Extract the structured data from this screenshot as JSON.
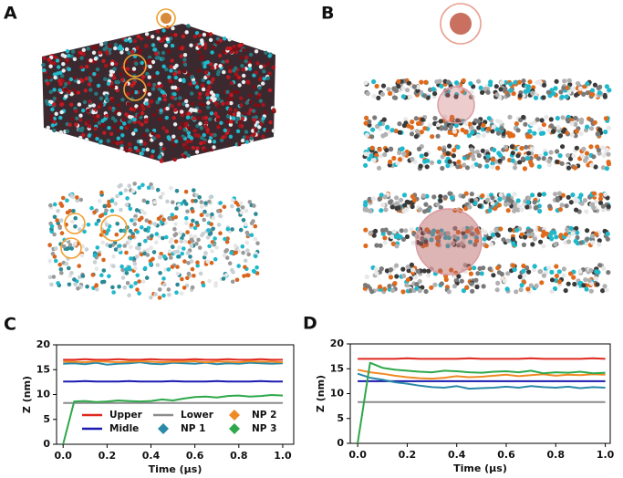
{
  "image_panels": [
    "A",
    "B"
  ],
  "chart_data": [
    {
      "type": "line",
      "panel_label": "C",
      "xlabel": "Time (μs)",
      "ylabel": "Z (nm)",
      "x": [
        0,
        0.05,
        0.1,
        0.15,
        0.2,
        0.25,
        0.3,
        0.35,
        0.4,
        0.45,
        0.5,
        0.55,
        0.6,
        0.65,
        0.7,
        0.75,
        0.8,
        0.85,
        0.9,
        0.95,
        1.0
      ],
      "xlim": [
        -0.03,
        1.05
      ],
      "ylim": [
        0,
        20
      ],
      "xticks": [
        {
          "value": 0,
          "label": "0.0"
        },
        0.2,
        0.4,
        0.6,
        0.8,
        {
          "value": 1,
          "label": "1.0"
        }
      ],
      "yticks": [
        0,
        5,
        10,
        15,
        20
      ],
      "legend": true,
      "series": [
        {
          "name": "Upper",
          "color": "#e0281e",
          "marker": "line",
          "values": [
            17,
            17,
            17.1,
            17,
            17,
            17.1,
            17,
            17,
            17.1,
            17,
            17,
            17,
            17.1,
            17,
            17,
            17.1,
            17,
            17,
            17.1,
            17,
            17
          ]
        },
        {
          "name": "Midle",
          "color": "#1a1ab0",
          "marker": "line",
          "values": [
            12.6,
            12.6,
            12.7,
            12.6,
            12.6,
            12.6,
            12.7,
            12.6,
            12.6,
            12.6,
            12.7,
            12.6,
            12.6,
            12.6,
            12.7,
            12.6,
            12.6,
            12.6,
            12.7,
            12.6,
            12.6
          ]
        },
        {
          "name": "Lower",
          "color": "#8c8c8c",
          "marker": "line",
          "values": [
            8.3,
            8.3,
            8.3,
            8.3,
            8.3,
            8.3,
            8.3,
            8.3,
            8.3,
            8.3,
            8.3,
            8.3,
            8.3,
            8.3,
            8.3,
            8.3,
            8.3,
            8.3,
            8.3,
            8.3,
            8.3
          ]
        },
        {
          "name": "NP 1",
          "color": "#2a8aa8",
          "marker": "diamond",
          "values": [
            16.2,
            16.3,
            16.1,
            16.4,
            16,
            16.2,
            16.3,
            16.5,
            16.2,
            16.1,
            16.4,
            16.3,
            16.2,
            16.4,
            16.1,
            16.3,
            16.2,
            16.4,
            16.3,
            16.2,
            16.3
          ]
        },
        {
          "name": "NP 2",
          "color": "#f08a24",
          "marker": "diamond",
          "values": [
            16.6,
            16.6,
            16.5,
            16.7,
            16.6,
            16.5,
            16.6,
            16.7,
            16.6,
            16.5,
            16.6,
            16.6,
            16.7,
            16.5,
            16.6,
            16.6,
            16.5,
            16.7,
            16.6,
            16.6,
            16.5
          ]
        },
        {
          "name": "NP 3",
          "color": "#2ea84a",
          "marker": "diamond",
          "values": [
            0,
            8.6,
            8.7,
            8.5,
            8.6,
            8.8,
            8.7,
            8.6,
            8.7,
            9,
            8.8,
            9.2,
            9.5,
            9.6,
            9.4,
            9.7,
            9.8,
            9.6,
            9.7,
            9.9,
            9.8
          ]
        }
      ]
    },
    {
      "type": "line",
      "panel_label": "D",
      "xlabel": "Time (μs)",
      "ylabel": "Z (nm)",
      "x": [
        0,
        0.05,
        0.1,
        0.15,
        0.2,
        0.25,
        0.3,
        0.35,
        0.4,
        0.45,
        0.5,
        0.55,
        0.6,
        0.65,
        0.7,
        0.75,
        0.8,
        0.85,
        0.9,
        0.95,
        1.0
      ],
      "xlim": [
        -0.03,
        1.02
      ],
      "ylim": [
        0,
        20
      ],
      "xticks": [
        {
          "value": 0,
          "label": "0.0"
        },
        0.2,
        0.4,
        0.6,
        0.8,
        {
          "value": 1,
          "label": "1.0"
        }
      ],
      "yticks": [
        0,
        5,
        10,
        15,
        20
      ],
      "legend": false,
      "series": [
        {
          "name": "Upper",
          "color": "#e0281e",
          "marker": "line",
          "values": [
            17,
            17,
            17,
            17,
            17.1,
            17,
            17,
            17,
            17,
            17.1,
            17,
            17,
            17,
            17,
            17.1,
            17,
            17,
            17,
            17,
            17.1,
            17
          ]
        },
        {
          "name": "Midle",
          "color": "#1a1ab0",
          "marker": "line",
          "values": [
            12.5,
            12.5,
            12.5,
            12.5,
            12.5,
            12.5,
            12.5,
            12.5,
            12.5,
            12.5,
            12.5,
            12.5,
            12.5,
            12.5,
            12.5,
            12.5,
            12.5,
            12.5,
            12.5,
            12.5,
            12.5
          ]
        },
        {
          "name": "Lower",
          "color": "#8c8c8c",
          "marker": "line",
          "values": [
            8.3,
            8.3,
            8.3,
            8.3,
            8.3,
            8.3,
            8.3,
            8.3,
            8.3,
            8.3,
            8.3,
            8.3,
            8.3,
            8.3,
            8.3,
            8.3,
            8.3,
            8.3,
            8.3,
            8.3,
            8.3
          ]
        },
        {
          "name": "NP 1",
          "color": "#2a8aa8",
          "marker": "diamond",
          "values": [
            14,
            13.2,
            12.8,
            12.3,
            12,
            11.6,
            11.3,
            11.2,
            11.5,
            11,
            11.1,
            11.2,
            11.4,
            11.2,
            11.5,
            11.3,
            11.2,
            11.4,
            11.1,
            11.3,
            11.2
          ]
        },
        {
          "name": "NP 2",
          "color": "#f08a24",
          "marker": "diamond",
          "values": [
            14.8,
            14.3,
            14,
            13.6,
            13.3,
            13.1,
            13,
            13.2,
            13.5,
            13.3,
            13.4,
            13.6,
            13.8,
            13.5,
            13.7,
            13.9,
            13.6,
            13.8,
            13.7,
            13.9,
            13.8
          ]
        },
        {
          "name": "NP 3",
          "color": "#2ea84a",
          "marker": "diamond",
          "values": [
            0,
            16.2,
            15.2,
            14.8,
            14.6,
            14.4,
            14.3,
            14.6,
            14.5,
            14.3,
            14.2,
            14.4,
            14.5,
            14.3,
            14.6,
            14.1,
            14.3,
            14.2,
            14.4,
            14.1,
            14.2
          ]
        }
      ]
    }
  ]
}
